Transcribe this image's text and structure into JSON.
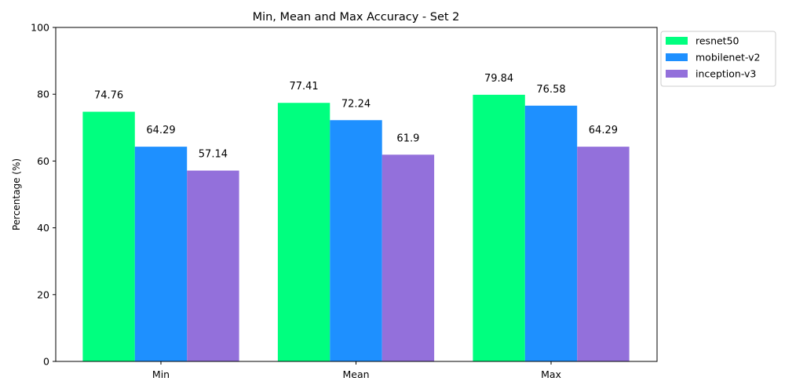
{
  "chart_data": {
    "type": "bar",
    "title": "Min, Mean and Max Accuracy - Set 2",
    "xlabel": "",
    "ylabel": "Percentage (%)",
    "categories": [
      "Min",
      "Mean",
      "Max"
    ],
    "ylim": [
      0,
      100
    ],
    "yticks": [
      "0",
      "20",
      "40",
      "60",
      "80",
      "100"
    ],
    "grid": false,
    "legend_position": "outside-top-right",
    "series": [
      {
        "name": "resnet50",
        "color": "#00ff7f",
        "values": [
          74.76,
          77.41,
          79.84
        ],
        "labels": [
          "74.76",
          "77.41",
          "79.84"
        ]
      },
      {
        "name": "mobilenet-v2",
        "color": "#1e90ff",
        "values": [
          64.29,
          72.24,
          76.58
        ],
        "labels": [
          "64.29",
          "72.24",
          "76.58"
        ]
      },
      {
        "name": "inception-v3",
        "color": "#9370db",
        "values": [
          57.14,
          61.9,
          64.29
        ],
        "labels": [
          "57.14",
          "61.9",
          "64.29"
        ]
      }
    ]
  }
}
